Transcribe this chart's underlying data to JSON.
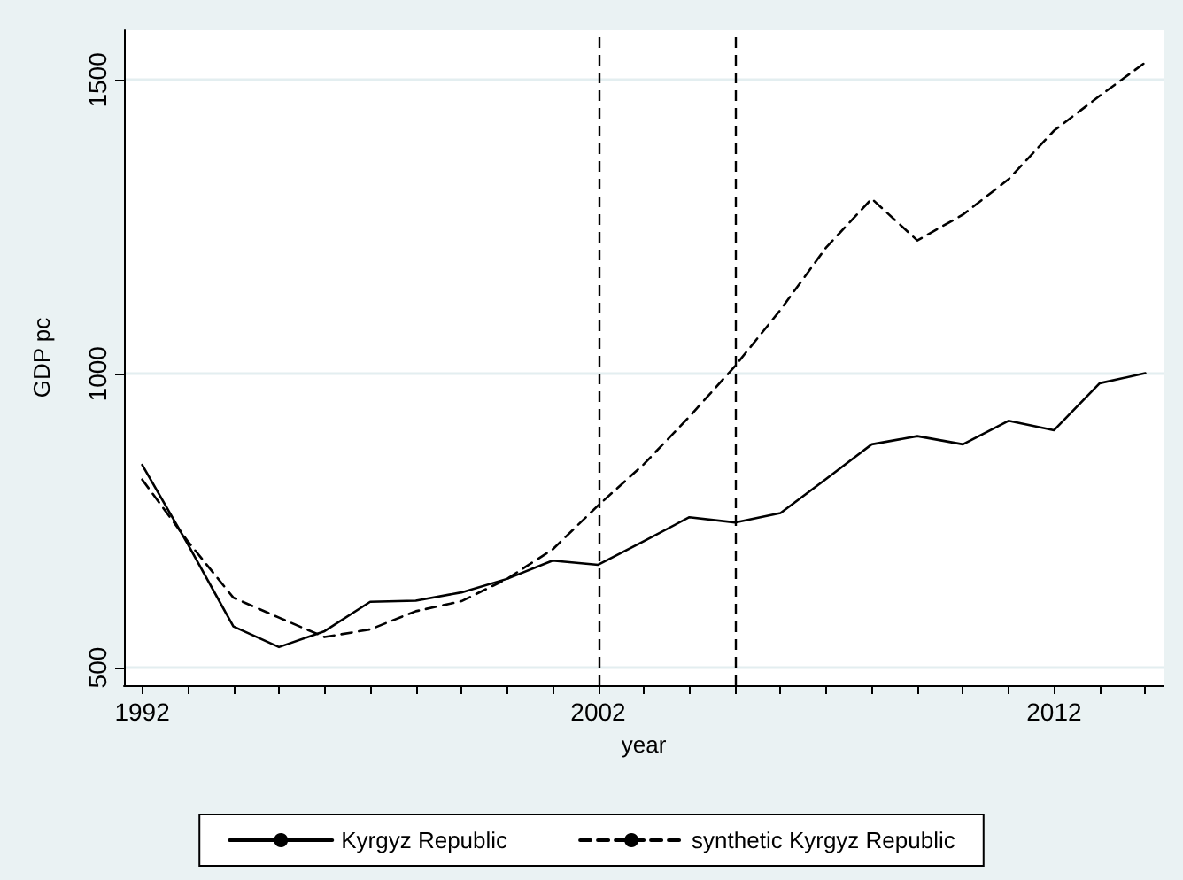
{
  "chart_data": {
    "type": "line",
    "xlabel": "year",
    "ylabel": "GDP pc",
    "x": [
      1992,
      1993,
      1994,
      1995,
      1996,
      1997,
      1998,
      1999,
      2000,
      2001,
      2002,
      2003,
      2004,
      2005,
      2006,
      2007,
      2008,
      2009,
      2010,
      2011,
      2012,
      2013,
      2014
    ],
    "series": [
      {
        "name": "Kyrgyz Republic",
        "color": "#000000",
        "line_style": "solid",
        "values": [
          845,
          710,
          570,
          535,
          562,
          612,
          614,
          628,
          651,
          682,
          675,
          715,
          756,
          747,
          763,
          821,
          880,
          894,
          880,
          920,
          904,
          984,
          1001
        ]
      },
      {
        "name": "synthetic Kyrgyz Republic",
        "color": "#000000",
        "line_style": "dashed",
        "values": [
          820,
          715,
          619,
          585,
          552,
          565,
          596,
          613,
          651,
          701,
          776,
          846,
          927,
          1013,
          1109,
          1215,
          1298,
          1227,
          1271,
          1331,
          1414,
          1473,
          1530
        ]
      }
    ],
    "xlim": [
      1991.6,
      2014.4
    ],
    "ylim": [
      470,
      1585
    ],
    "xticks": [
      1992,
      {
        "value": 1993,
        "label": null
      },
      {
        "value": 1994,
        "label": null
      },
      {
        "value": 1995,
        "label": null
      },
      {
        "value": 1996,
        "label": null
      },
      {
        "value": 1997,
        "label": null
      },
      {
        "value": 1998,
        "label": null
      },
      {
        "value": 1999,
        "label": null
      },
      {
        "value": 2000,
        "label": null
      },
      {
        "value": 2001,
        "label": null
      },
      2002,
      {
        "value": 2003,
        "label": null
      },
      {
        "value": 2004,
        "label": null
      },
      {
        "value": 2005,
        "label": null
      },
      {
        "value": 2006,
        "label": null
      },
      {
        "value": 2007,
        "label": null
      },
      {
        "value": 2008,
        "label": null
      },
      {
        "value": 2009,
        "label": null
      },
      {
        "value": 2010,
        "label": null
      },
      {
        "value": 2011,
        "label": null
      },
      2012,
      {
        "value": 2013,
        "label": null
      },
      {
        "value": 2014,
        "label": null
      }
    ],
    "yticks": [
      500,
      1000,
      1500
    ],
    "ref_lines": [
      {
        "axis": "x",
        "value": 2002,
        "color": "#000000",
        "line_style": "dashed"
      },
      {
        "axis": "x",
        "value": 2005,
        "color": "#000000",
        "line_style": "dashed"
      }
    ],
    "grid": "y",
    "legend": "bottom",
    "marker": "none"
  }
}
